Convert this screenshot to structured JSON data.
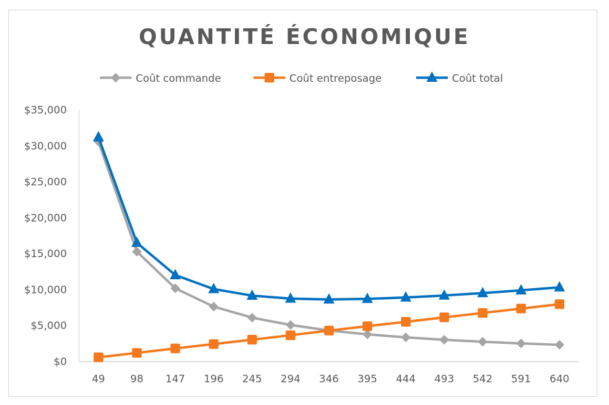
{
  "chart_data": {
    "type": "line",
    "title": "QUANTITÉ ÉCONOMIQUE",
    "xlabel": "",
    "ylabel": "",
    "categories": [
      "49",
      "98",
      "147",
      "196",
      "245",
      "294",
      "346",
      "395",
      "444",
      "493",
      "542",
      "591",
      "640"
    ],
    "ylim": [
      0,
      35000
    ],
    "yticks": [
      "$0",
      "$5,000",
      "$10,000",
      "$15,000",
      "$20,000",
      "$25,000",
      "$30,000",
      "$35,000"
    ],
    "grid": false,
    "legend": "top",
    "series": [
      {
        "name": "Coût commande",
        "color": "#a5a5a5",
        "marker": "diamond",
        "values": [
          30612,
          15306,
          10204,
          7653,
          6122,
          5102,
          4335,
          3797,
          3378,
          3043,
          2768,
          2538,
          2344
        ]
      },
      {
        "name": "Coût entreposage",
        "color": "#f4791c",
        "marker": "square",
        "values": [
          613,
          1225,
          1838,
          2450,
          3063,
          3675,
          4325,
          4938,
          5550,
          6163,
          6775,
          7388,
          8000
        ]
      },
      {
        "name": "Coût total",
        "color": "#0070c0",
        "marker": "triangle",
        "values": [
          31225,
          16531,
          12042,
          10103,
          9185,
          8777,
          8660,
          8735,
          8928,
          9206,
          9543,
          9926,
          10344
        ]
      }
    ]
  }
}
